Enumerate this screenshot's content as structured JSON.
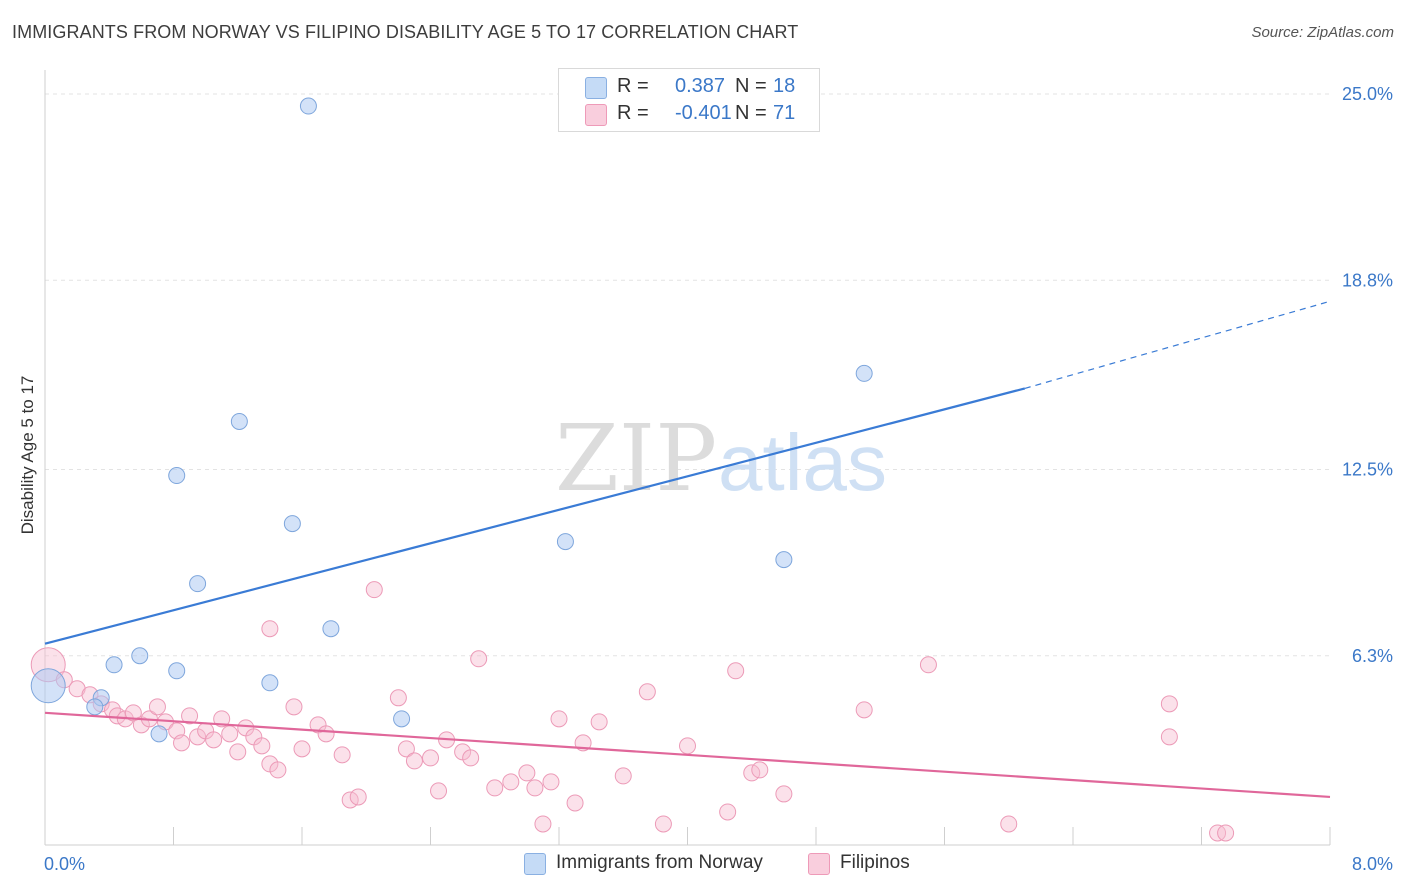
{
  "header": {
    "title": "IMMIGRANTS FROM NORWAY VS FILIPINO DISABILITY AGE 5 TO 17 CORRELATION CHART",
    "source": "Source: ZipAtlas.com"
  },
  "watermark": {
    "zip": "ZIP",
    "atlas": "atlas"
  },
  "legend": {
    "rows": [
      {
        "r_label": "R =",
        "r_value": "0.387",
        "n_label": "N =",
        "n_value": "18",
        "color": "#aecbf2"
      },
      {
        "r_label": "R =",
        "r_value": "-0.401",
        "n_label": "N =",
        "n_value": "71",
        "color": "#f6bcd0"
      }
    ]
  },
  "bottom_legend": [
    {
      "label": "Immigrants from Norway",
      "color": "#aecbf2"
    },
    {
      "label": "Filipinos",
      "color": "#f6bcd0"
    }
  ],
  "chart_data": {
    "type": "scatter",
    "title": "IMMIGRANTS FROM NORWAY VS FILIPINO DISABILITY AGE 5 TO 17 CORRELATION CHART",
    "xlabel": "",
    "ylabel": "Disability Age 5 to 17",
    "xlim": [
      0,
      8
    ],
    "ylim": [
      0,
      25.8
    ],
    "x_tick_labels": [
      "0.0%",
      "8.0%"
    ],
    "y_ticks": [
      6.3,
      12.5,
      18.8,
      25.0
    ],
    "y_tick_labels": [
      "6.3%",
      "12.5%",
      "18.8%",
      "25.0%"
    ],
    "grid": true,
    "colors": {
      "norway": "#3a7bd5",
      "filipinos": "#e0679a",
      "tick_text": "#3b78c8"
    },
    "series": [
      {
        "name": "Immigrants from Norway",
        "color": "#aecbf2",
        "points": [
          [
            0.02,
            5.3
          ],
          [
            0.35,
            4.9
          ],
          [
            0.31,
            4.6
          ],
          [
            0.43,
            6.0
          ],
          [
            0.59,
            6.3
          ],
          [
            0.71,
            3.7
          ],
          [
            0.82,
            5.8
          ],
          [
            0.95,
            8.7
          ],
          [
            0.82,
            12.3
          ],
          [
            1.21,
            14.1
          ],
          [
            1.4,
            5.4
          ],
          [
            1.54,
            10.7
          ],
          [
            1.78,
            7.2
          ],
          [
            2.22,
            4.2
          ],
          [
            1.64,
            24.6
          ],
          [
            3.24,
            10.1
          ],
          [
            4.6,
            9.5
          ],
          [
            5.1,
            15.7
          ]
        ],
        "trend": {
          "x_start": 0.0,
          "y_start": 6.7,
          "x_solid_end": 6.1,
          "y_solid_end": 15.2,
          "x_end": 8.0,
          "y_end": 18.1
        }
      },
      {
        "name": "Filipinos",
        "color": "#f6bcd0",
        "points": [
          [
            0.02,
            6.0
          ],
          [
            0.12,
            5.5
          ],
          [
            0.2,
            5.2
          ],
          [
            0.28,
            5.0
          ],
          [
            0.35,
            4.7
          ],
          [
            0.42,
            4.5
          ],
          [
            0.45,
            4.3
          ],
          [
            0.5,
            4.2
          ],
          [
            0.55,
            4.4
          ],
          [
            0.6,
            4.0
          ],
          [
            0.65,
            4.2
          ],
          [
            0.7,
            4.6
          ],
          [
            0.75,
            4.1
          ],
          [
            0.82,
            3.8
          ],
          [
            0.85,
            3.4
          ],
          [
            0.9,
            4.3
          ],
          [
            0.95,
            3.6
          ],
          [
            1.0,
            3.8
          ],
          [
            1.05,
            3.5
          ],
          [
            1.1,
            4.2
          ],
          [
            1.15,
            3.7
          ],
          [
            1.2,
            3.1
          ],
          [
            1.25,
            3.9
          ],
          [
            1.3,
            3.6
          ],
          [
            1.35,
            3.3
          ],
          [
            1.4,
            2.7
          ],
          [
            1.45,
            2.5
          ],
          [
            1.55,
            4.6
          ],
          [
            1.6,
            3.2
          ],
          [
            1.7,
            4.0
          ],
          [
            1.75,
            3.7
          ],
          [
            1.85,
            3.0
          ],
          [
            1.9,
            1.5
          ],
          [
            1.95,
            1.6
          ],
          [
            2.05,
            8.5
          ],
          [
            2.2,
            4.9
          ],
          [
            2.25,
            3.2
          ],
          [
            2.3,
            2.8
          ],
          [
            2.4,
            2.9
          ],
          [
            2.45,
            1.8
          ],
          [
            2.5,
            3.5
          ],
          [
            2.6,
            3.1
          ],
          [
            2.65,
            2.9
          ],
          [
            2.7,
            6.2
          ],
          [
            2.8,
            1.9
          ],
          [
            2.9,
            2.1
          ],
          [
            3.0,
            2.4
          ],
          [
            3.05,
            1.9
          ],
          [
            3.1,
            0.7
          ],
          [
            3.15,
            2.1
          ],
          [
            3.2,
            4.2
          ],
          [
            3.3,
            1.4
          ],
          [
            3.35,
            3.4
          ],
          [
            3.45,
            4.1
          ],
          [
            3.6,
            2.3
          ],
          [
            3.75,
            5.1
          ],
          [
            3.85,
            0.7
          ],
          [
            4.0,
            3.3
          ],
          [
            4.25,
            1.1
          ],
          [
            4.3,
            5.8
          ],
          [
            4.4,
            2.4
          ],
          [
            4.45,
            2.5
          ],
          [
            4.6,
            1.7
          ],
          [
            5.1,
            4.5
          ],
          [
            5.5,
            6.0
          ],
          [
            6.0,
            0.7
          ],
          [
            7.0,
            4.7
          ],
          [
            7.0,
            3.6
          ],
          [
            7.3,
            0.4
          ],
          [
            7.35,
            0.4
          ],
          [
            1.4,
            7.2
          ]
        ],
        "trend": {
          "x_start": 0.0,
          "y_start": 4.4,
          "x_end": 8.0,
          "y_end": 1.6
        }
      }
    ]
  }
}
